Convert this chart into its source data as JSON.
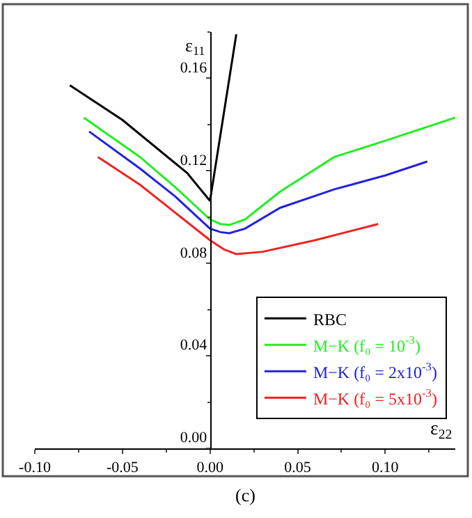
{
  "chart_data": {
    "type": "line",
    "xlabel": "ε$_{22}$",
    "ylabel": "ε$_{11}$",
    "xlim": [
      -0.1,
      0.14
    ],
    "ylim": [
      0,
      0.18
    ],
    "xticks": [
      {
        "value": -0.1,
        "label": "-0.10"
      },
      {
        "value": -0.05,
        "label": "-0.05"
      },
      {
        "value": 0,
        "label": "0.00"
      },
      {
        "value": 0.05,
        "label": "0.05"
      },
      {
        "value": 0.1,
        "label": "0.10"
      }
    ],
    "yticks": [
      {
        "value": 0,
        "label": "0.00"
      },
      {
        "value": 0.04,
        "label": "0.04"
      },
      {
        "value": 0.08,
        "label": "0.08"
      },
      {
        "value": 0.12,
        "label": "0.12"
      },
      {
        "value": 0.16,
        "label": "0.16"
      }
    ],
    "legend": "bottom right",
    "marker": "none",
    "line_style": "solid",
    "annotations": [
      "(c)"
    ],
    "series": [
      {
        "name": "RBC",
        "color": "#000000",
        "x": [
          -0.08,
          -0.05,
          -0.013,
          0,
          0.015
        ],
        "values": [
          0.157,
          0.142,
          0.119,
          0.107,
          0.179
        ]
      },
      {
        "name": "M−K (f₀ = 10$^{-3}$)",
        "color": "#22ee22",
        "x": [
          -0.072,
          -0.04,
          -0.02,
          0,
          0.006,
          0.011,
          0.02,
          0.04,
          0.071,
          0.1,
          0.14
        ],
        "values": [
          0.143,
          0.126,
          0.113,
          0.099,
          0.097,
          0.0966,
          0.099,
          0.111,
          0.126,
          0.133,
          0.143
        ]
      },
      {
        "name": "M−K (f₀ = 2x10$^{-3}$)",
        "color": "#2222dd",
        "x": [
          -0.069,
          -0.04,
          -0.02,
          0,
          0.006,
          0.011,
          0.02,
          0.04,
          0.071,
          0.1,
          0.124
        ],
        "values": [
          0.137,
          0.121,
          0.109,
          0.095,
          0.0935,
          0.093,
          0.095,
          0.104,
          0.112,
          0.118,
          0.124
        ]
      },
      {
        "name": "M−K (f₀ = 5x10$^{-3}$)",
        "color": "#ee2222",
        "x": [
          -0.064,
          -0.04,
          -0.02,
          0,
          0.008,
          0.015,
          0.03,
          0.06,
          0.096
        ],
        "values": [
          0.126,
          0.114,
          0.102,
          0.09,
          0.086,
          0.084,
          0.085,
          0.09,
          0.097
        ]
      }
    ]
  }
}
